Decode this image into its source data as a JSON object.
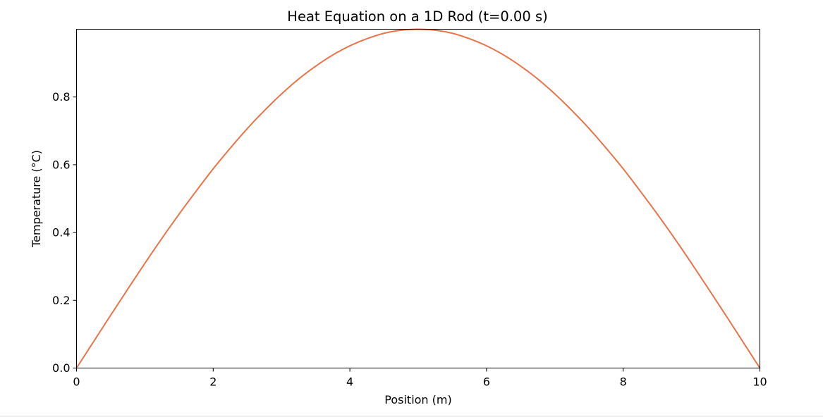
{
  "chart_data": {
    "type": "line",
    "title": "Heat Equation on a 1D Rod (t=0.00 s)",
    "xlabel": "Position (m)",
    "ylabel": "Temperature (°C)",
    "xlim": [
      0,
      10
    ],
    "ylim": [
      0,
      1
    ],
    "xticks": [
      0,
      2,
      4,
      6,
      8,
      10
    ],
    "xtick_labels": [
      "0",
      "2",
      "4",
      "6",
      "8",
      "10"
    ],
    "yticks": [
      0.0,
      0.2,
      0.4,
      0.6,
      0.8
    ],
    "ytick_labels": [
      "0.0",
      "0.2",
      "0.4",
      "0.6",
      "0.8"
    ],
    "grid": false,
    "series": [
      {
        "color": "#e8744a",
        "x": [
          0,
          0.25,
          0.5,
          0.75,
          1,
          1.25,
          1.5,
          1.75,
          2,
          2.25,
          2.5,
          2.75,
          3,
          3.25,
          3.5,
          3.75,
          4,
          4.25,
          4.5,
          4.75,
          5,
          5.25,
          5.5,
          5.75,
          6,
          6.25,
          6.5,
          6.75,
          7,
          7.25,
          7.5,
          7.75,
          8,
          8.25,
          8.5,
          8.75,
          9,
          9.25,
          9.5,
          9.75,
          10
        ],
        "y": [
          0.0,
          0.078,
          0.156,
          0.233,
          0.309,
          0.383,
          0.454,
          0.522,
          0.588,
          0.649,
          0.707,
          0.76,
          0.809,
          0.853,
          0.891,
          0.924,
          0.951,
          0.972,
          0.988,
          0.997,
          1.0,
          0.997,
          0.988,
          0.972,
          0.951,
          0.924,
          0.891,
          0.853,
          0.809,
          0.76,
          0.707,
          0.649,
          0.588,
          0.522,
          0.454,
          0.383,
          0.309,
          0.233,
          0.156,
          0.078,
          0.0
        ]
      }
    ]
  }
}
